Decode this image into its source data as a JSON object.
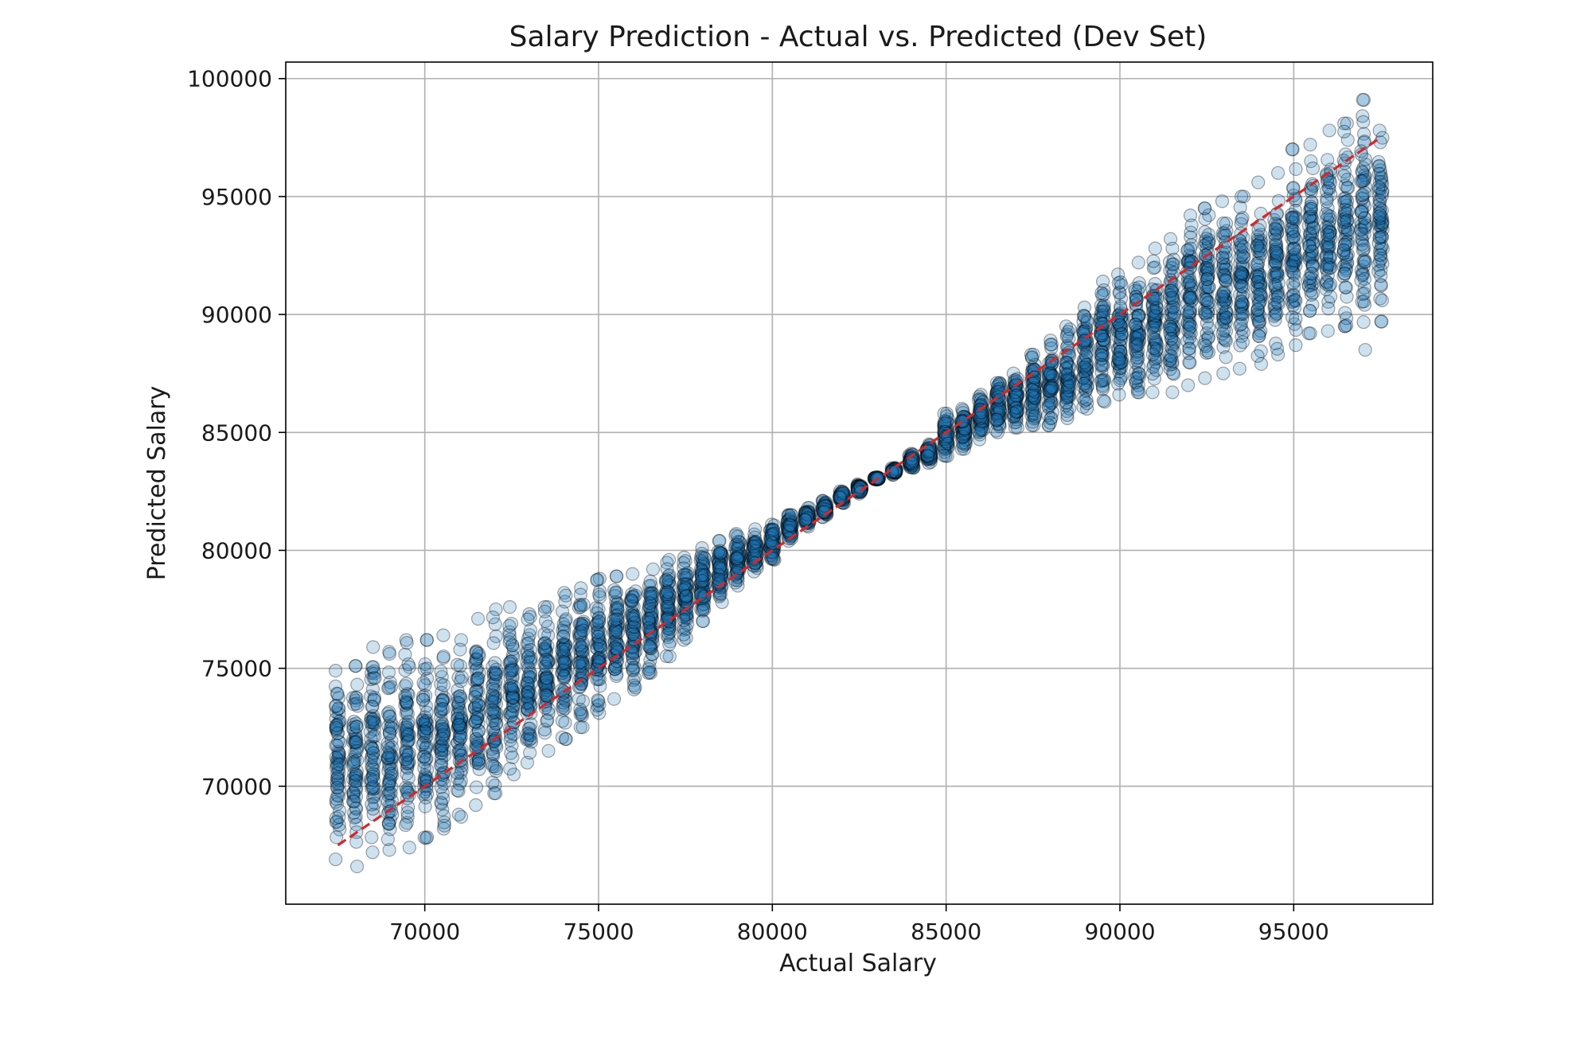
{
  "chart_data": {
    "type": "scatter",
    "title": "Salary Prediction - Actual vs. Predicted (Dev Set)",
    "xlabel": "Actual Salary",
    "ylabel": "Predicted Salary",
    "xlim": [
      66000,
      99000
    ],
    "ylim": [
      65000,
      100700
    ],
    "x_ticks": [
      70000,
      75000,
      80000,
      85000,
      90000,
      95000
    ],
    "y_ticks": [
      70000,
      75000,
      80000,
      85000,
      90000,
      95000,
      100000
    ],
    "x_tick_labels": [
      "70000",
      "75000",
      "80000",
      "85000",
      "90000",
      "95000"
    ],
    "y_tick_labels": [
      "70000",
      "75000",
      "80000",
      "85000",
      "90000",
      "95000",
      "100000"
    ],
    "grid": true,
    "marker_color": "#1f77b4",
    "reference_line": {
      "style": "dashed",
      "color": "#d62728",
      "x": [
        67500,
        97500
      ],
      "y": [
        67500,
        97500
      ]
    },
    "point_columns": {
      "x_values": [
        67500,
        68000,
        68500,
        69000,
        69500,
        70000,
        70500,
        71000,
        71500,
        72000,
        72500,
        73000,
        73500,
        74000,
        74500,
        75000,
        75500,
        76000,
        76500,
        77000,
        77500,
        78000,
        78500,
        79000,
        79500,
        80000,
        80500,
        81000,
        81500,
        82000,
        82500,
        83000,
        83500,
        84000,
        84500,
        85000,
        85500,
        86000,
        86500,
        87000,
        87500,
        88000,
        88500,
        89000,
        89500,
        90000,
        90500,
        91000,
        91500,
        92000,
        92500,
        93000,
        93500,
        94000,
        94500,
        95000,
        95500,
        96000,
        96500,
        97000,
        97500
      ],
      "y_min": [
        66900,
        66600,
        67200,
        67300,
        67400,
        67800,
        68200,
        68700,
        69200,
        69700,
        70500,
        71000,
        71500,
        72000,
        72500,
        73100,
        73700,
        74100,
        74800,
        75500,
        76200,
        77000,
        77800,
        78500,
        79100,
        79600,
        80400,
        81000,
        81400,
        82000,
        82400,
        83000,
        83200,
        83500,
        83700,
        84000,
        84300,
        84700,
        85000,
        85200,
        85300,
        85300,
        85600,
        86000,
        86300,
        86600,
        86700,
        86700,
        86700,
        87000,
        87300,
        87500,
        87700,
        87900,
        88300,
        88700,
        89200,
        89300,
        89500,
        88500,
        89700
      ],
      "y_max": [
        74900,
        75100,
        75900,
        75700,
        76200,
        76200,
        76400,
        76200,
        77100,
        77500,
        77600,
        77300,
        77600,
        78200,
        78400,
        78800,
        78900,
        79000,
        79200,
        79600,
        79700,
        80100,
        80400,
        80700,
        80900,
        81100,
        81500,
        81800,
        82100,
        82500,
        82800,
        83100,
        83500,
        84100,
        84500,
        85800,
        86000,
        86600,
        87100,
        87500,
        88300,
        88900,
        89500,
        90300,
        91400,
        91700,
        92200,
        92800,
        93200,
        94200,
        94500,
        94800,
        95000,
        95600,
        96000,
        97000,
        97200,
        97800,
        98100,
        99100,
        97800
      ]
    }
  }
}
